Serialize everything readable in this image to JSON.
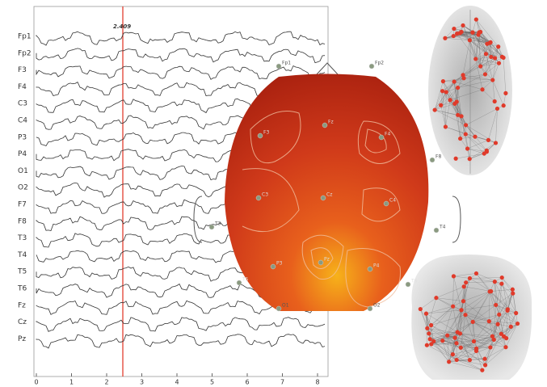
{
  "eeg": {
    "channels": [
      "Fp1",
      "Fp2",
      "F3",
      "F4",
      "C3",
      "C4",
      "P3",
      "P4",
      "O1",
      "O2",
      "F7",
      "F8",
      "T3",
      "T4",
      "T5",
      "T6",
      "Fz",
      "Cz",
      "Pz"
    ],
    "xticks": [
      0,
      1,
      2,
      3,
      4,
      5,
      6,
      7,
      8
    ],
    "marker_label": "2.409"
  },
  "topomap": {
    "electrodes": [
      "Fp1",
      "Fp2",
      "F3",
      "Fz",
      "F4",
      "F8",
      "C3",
      "Cz",
      "C4",
      "T3",
      "T4",
      "P3",
      "Pz",
      "P4",
      "T5",
      "T6",
      "O1",
      "O2"
    ]
  }
}
